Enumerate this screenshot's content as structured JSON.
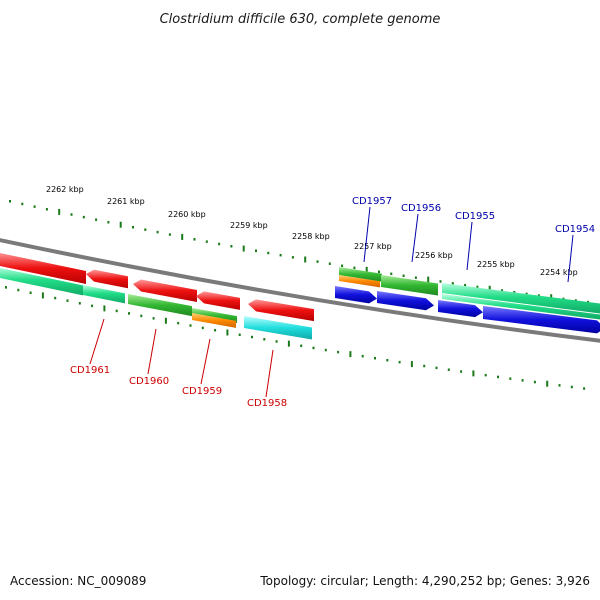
{
  "title": "Clostridium difficile 630, complete genome",
  "footer": {
    "accession": "Accession: NC_009089",
    "summary": "Topology: circular; Length: 4,290,252 bp; Genes: 3,926"
  },
  "colors": {
    "tick": "#1a7a1a",
    "backbone": "#7a7a7a",
    "reverse_label": "#cc0000",
    "forward_label": "#0000aa",
    "red": "#ee1111",
    "spring": "#22dd88",
    "green": "#33b833",
    "orange": "#ff8800",
    "cyan": "#22dddd",
    "blue": "#1111dd"
  },
  "scale_labels": [
    "2262 kbp",
    "2261 kbp",
    "2260 kbp",
    "2259 kbp",
    "2258 kbp",
    "2257 kbp",
    "2256 kbp",
    "2255 kbp",
    "2254 kbp"
  ],
  "gene_labels_reverse": [
    "CD1961",
    "CD1960",
    "CD1959",
    "CD1958"
  ],
  "gene_labels_forward": [
    "CD1957",
    "CD1956",
    "CD1955",
    "CD1954"
  ]
}
